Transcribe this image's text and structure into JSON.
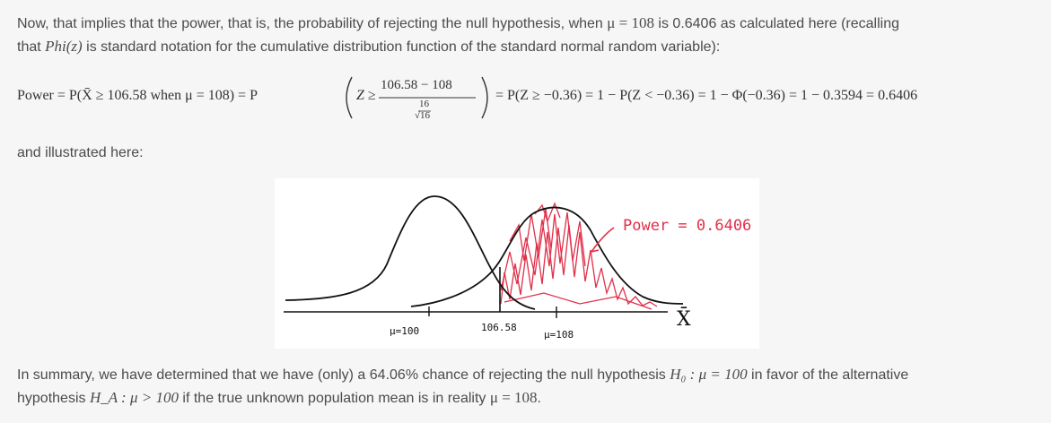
{
  "para1": {
    "line1": "Now, that implies that the power, that is, the probability of rejecting the null hypothesis, when ",
    "mu_eq": "μ = 108",
    "line1_b": " is 0.6406 as calculated here (recalling",
    "line2_a": "that ",
    "phi_notation": "Phi(z)",
    "line2_b": " is standard notation for the cumulative distribution function of the standard normal random variable):"
  },
  "equation": {
    "lhs": "Power = P(X̄ ≥ 106.58 when μ = 108) = P",
    "z_ge": "Z ≥",
    "numerator": "106.58 − 108",
    "den_num": "16",
    "den_den": "√16",
    "rhs": "= P(Z ≥ −0.36) = 1 − P(Z < −0.36) = 1 − Φ(−0.36) = 1 − 0.3594 = 0.6406"
  },
  "para3": "and illustrated here:",
  "figure": {
    "power_label": "Power = 0.6406",
    "x_axis_label": "X̄",
    "mu0_label": "μ=100",
    "cutoff_label": "106.58",
    "mu1_label": "μ=108",
    "curve_color": "#111111",
    "shade_color": "#e0304a"
  },
  "para4": {
    "line1_a": "In summary, we have determined that we have (only) a 64.06% chance of rejecting the null hypothesis ",
    "h0": "H₀ : μ = 100",
    "line1_b": " in favor of the alternative",
    "line2_a": "hypothesis ",
    "ha": "H_A : μ > 100",
    "line2_b": " if the true unknown population mean is in reality ",
    "mu_eq": "μ = 108",
    "line2_c": "."
  }
}
